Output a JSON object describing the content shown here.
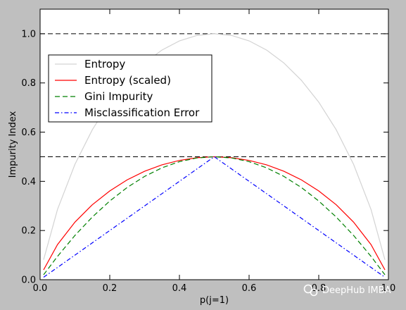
{
  "chart_data": {
    "type": "line",
    "title": "",
    "xlabel": "p(j=1)",
    "ylabel": "Impurity Index",
    "xlim": [
      0.0,
      1.0
    ],
    "ylim": [
      0.0,
      1.1
    ],
    "x_ticks": [
      0.0,
      0.2,
      0.4,
      0.6,
      0.8,
      1.0
    ],
    "y_ticks": [
      0.0,
      0.2,
      0.4,
      0.6,
      0.8,
      1.0
    ],
    "x_tick_labels": [
      "0.0",
      "0.2",
      "0.4",
      "0.6",
      "0.8",
      "1.0"
    ],
    "y_tick_labels": [
      "0.0",
      "0.2",
      "0.4",
      "0.6",
      "0.8",
      "1.0"
    ],
    "grid": false,
    "legend_placement": "upper-left",
    "x": [
      0.01,
      0.05,
      0.1,
      0.15,
      0.2,
      0.25,
      0.3,
      0.35,
      0.4,
      0.45,
      0.5,
      0.55,
      0.6,
      0.65,
      0.7,
      0.75,
      0.8,
      0.85,
      0.9,
      0.95,
      0.99
    ],
    "series": [
      {
        "name": "Entropy",
        "color": "#d3d3d3",
        "dash": "solid",
        "values": [
          0.081,
          0.286,
          0.469,
          0.61,
          0.722,
          0.811,
          0.881,
          0.934,
          0.971,
          0.993,
          1.0,
          0.993,
          0.971,
          0.934,
          0.881,
          0.811,
          0.722,
          0.61,
          0.469,
          0.286,
          0.081
        ]
      },
      {
        "name": "Entropy (scaled)",
        "color": "#ff0000",
        "dash": "solid",
        "values": [
          0.04,
          0.143,
          0.234,
          0.305,
          0.361,
          0.406,
          0.441,
          0.467,
          0.485,
          0.496,
          0.5,
          0.496,
          0.485,
          0.467,
          0.441,
          0.406,
          0.361,
          0.305,
          0.234,
          0.143,
          0.04
        ]
      },
      {
        "name": "Gini Impurity",
        "color": "#008000",
        "dash": "dashed",
        "values": [
          0.02,
          0.095,
          0.18,
          0.255,
          0.32,
          0.375,
          0.42,
          0.455,
          0.48,
          0.495,
          0.5,
          0.495,
          0.48,
          0.455,
          0.42,
          0.375,
          0.32,
          0.255,
          0.18,
          0.095,
          0.02
        ]
      },
      {
        "name": "Misclassification Error",
        "color": "#0000ff",
        "dash": "dashdot",
        "values": [
          0.01,
          0.05,
          0.1,
          0.15,
          0.2,
          0.25,
          0.3,
          0.35,
          0.4,
          0.45,
          0.5,
          0.45,
          0.4,
          0.35,
          0.3,
          0.25,
          0.2,
          0.15,
          0.1,
          0.05,
          0.01
        ]
      }
    ],
    "hlines": [
      {
        "y": 0.5,
        "color": "#000000",
        "dash": "dashed"
      },
      {
        "y": 1.0,
        "color": "#000000",
        "dash": "dashed"
      }
    ]
  },
  "watermark": {
    "text": "DeepHub IMBA",
    "icon": "wechat-icon"
  }
}
